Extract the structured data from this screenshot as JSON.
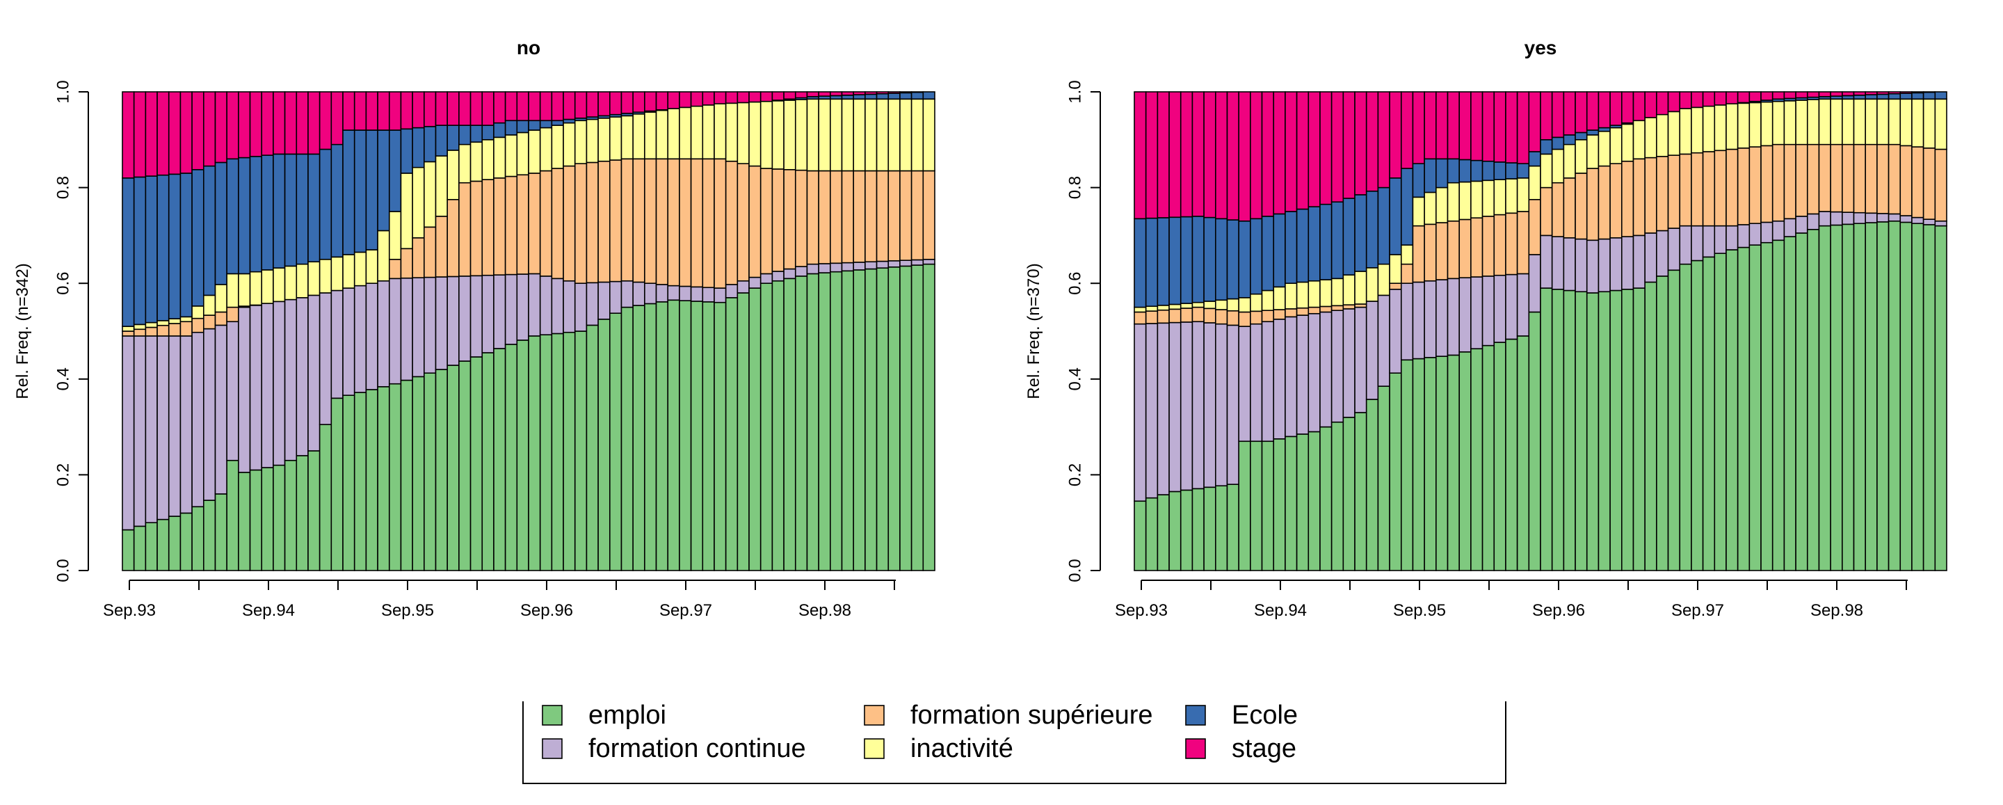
{
  "chart_data": [
    {
      "type": "bar",
      "stacked": true,
      "title": "no",
      "xlabel": "",
      "ylabel": "Rel. Freq. (n=342)",
      "ylim": [
        0,
        1
      ],
      "y_ticks": [
        "0.0",
        "0.2",
        "0.4",
        "0.6",
        "0.8",
        "1.0"
      ],
      "x_tick_labels": [
        "Sep.93",
        "Sep.94",
        "Sep.95",
        "Sep.96",
        "Sep.97",
        "Sep.98"
      ],
      "categories_count": 70,
      "series": [
        {
          "name": "emploi",
          "cumulative_top_knots": [
            [
              1,
              0.085
            ],
            [
              3,
              0.1
            ],
            [
              6,
              0.12
            ],
            [
              9,
              0.16
            ],
            [
              10,
              0.23
            ],
            [
              11,
              0.205
            ],
            [
              14,
              0.22
            ],
            [
              17,
              0.25
            ],
            [
              19,
              0.36
            ],
            [
              24,
              0.39
            ],
            [
              28,
              0.42
            ],
            [
              36,
              0.49
            ],
            [
              40,
              0.5
            ],
            [
              44,
              0.55
            ],
            [
              48,
              0.565
            ],
            [
              52,
              0.56
            ],
            [
              56,
              0.6
            ],
            [
              60,
              0.62
            ],
            [
              70,
              0.64
            ]
          ]
        },
        {
          "name": "formation continue",
          "cumulative_top_knots": [
            [
              1,
              0.49
            ],
            [
              6,
              0.49
            ],
            [
              10,
              0.52
            ],
            [
              11,
              0.55
            ],
            [
              16,
              0.57
            ],
            [
              22,
              0.6
            ],
            [
              24,
              0.61
            ],
            [
              30,
              0.615
            ],
            [
              36,
              0.62
            ],
            [
              40,
              0.6
            ],
            [
              44,
              0.605
            ],
            [
              48,
              0.595
            ],
            [
              52,
              0.59
            ],
            [
              56,
              0.62
            ],
            [
              60,
              0.64
            ],
            [
              70,
              0.65
            ]
          ]
        },
        {
          "name": "formation supérieure",
          "cumulative_top_knots": [
            [
              1,
              0.5
            ],
            [
              6,
              0.52
            ],
            [
              9,
              0.54
            ],
            [
              10,
              0.55
            ],
            [
              23,
              0.58
            ],
            [
              24,
              0.65
            ],
            [
              28,
              0.74
            ],
            [
              30,
              0.81
            ],
            [
              36,
              0.83
            ],
            [
              40,
              0.85
            ],
            [
              44,
              0.86
            ],
            [
              48,
              0.86
            ],
            [
              52,
              0.86
            ],
            [
              56,
              0.84
            ],
            [
              60,
              0.835
            ],
            [
              70,
              0.835
            ]
          ]
        },
        {
          "name": "inactivité",
          "cumulative_top_knots": [
            [
              1,
              0.51
            ],
            [
              6,
              0.53
            ],
            [
              10,
              0.62
            ],
            [
              11,
              0.62
            ],
            [
              16,
              0.64
            ],
            [
              22,
              0.67
            ],
            [
              24,
              0.75
            ],
            [
              25,
              0.83
            ],
            [
              30,
              0.89
            ],
            [
              36,
              0.92
            ],
            [
              40,
              0.94
            ],
            [
              44,
              0.95
            ],
            [
              48,
              0.965
            ],
            [
              52,
              0.975
            ],
            [
              56,
              0.98
            ],
            [
              60,
              0.985
            ],
            [
              70,
              0.985
            ]
          ]
        },
        {
          "name": "Ecole",
          "cumulative_top_knots": [
            [
              1,
              0.82
            ],
            [
              6,
              0.83
            ],
            [
              10,
              0.86
            ],
            [
              14,
              0.87
            ],
            [
              17,
              0.87
            ],
            [
              19,
              0.89
            ],
            [
              20,
              0.92
            ],
            [
              24,
              0.92
            ],
            [
              28,
              0.93
            ],
            [
              32,
              0.93
            ],
            [
              34,
              0.94
            ],
            [
              38,
              0.94
            ],
            [
              42,
              0.95
            ],
            [
              44,
              0.955
            ],
            [
              48,
              0.965
            ],
            [
              52,
              0.975
            ],
            [
              56,
              0.98
            ],
            [
              60,
              0.99
            ],
            [
              70,
              1.0
            ]
          ]
        },
        {
          "name": "stage",
          "cumulative_top_knots": [
            [
              1,
              1.0
            ],
            [
              70,
              1.0
            ]
          ]
        }
      ]
    },
    {
      "type": "bar",
      "stacked": true,
      "title": "yes",
      "xlabel": "",
      "ylabel": "Rel. Freq. (n=370)",
      "ylim": [
        0,
        1
      ],
      "y_ticks": [
        "0.0",
        "0.2",
        "0.4",
        "0.6",
        "0.8",
        "1.0"
      ],
      "x_tick_labels": [
        "Sep.93",
        "Sep.94",
        "Sep.95",
        "Sep.96",
        "Sep.97",
        "Sep.98"
      ],
      "categories_count": 70,
      "series": [
        {
          "name": "emploi",
          "cumulative_top_knots": [
            [
              1,
              0.145
            ],
            [
              4,
              0.165
            ],
            [
              9,
              0.18
            ],
            [
              10,
              0.27
            ],
            [
              12,
              0.27
            ],
            [
              16,
              0.29
            ],
            [
              20,
              0.33
            ],
            [
              24,
              0.44
            ],
            [
              28,
              0.45
            ],
            [
              34,
              0.49
            ],
            [
              36,
              0.59
            ],
            [
              40,
              0.58
            ],
            [
              44,
              0.59
            ],
            [
              48,
              0.64
            ],
            [
              52,
              0.67
            ],
            [
              56,
              0.69
            ],
            [
              60,
              0.72
            ],
            [
              66,
              0.73
            ],
            [
              70,
              0.72
            ]
          ]
        },
        {
          "name": "formation continue",
          "cumulative_top_knots": [
            [
              1,
              0.515
            ],
            [
              6,
              0.52
            ],
            [
              10,
              0.51
            ],
            [
              14,
              0.53
            ],
            [
              20,
              0.55
            ],
            [
              24,
              0.6
            ],
            [
              28,
              0.61
            ],
            [
              34,
              0.62
            ],
            [
              36,
              0.7
            ],
            [
              40,
              0.69
            ],
            [
              44,
              0.7
            ],
            [
              48,
              0.72
            ],
            [
              52,
              0.72
            ],
            [
              56,
              0.73
            ],
            [
              60,
              0.75
            ],
            [
              66,
              0.745
            ],
            [
              70,
              0.73
            ]
          ]
        },
        {
          "name": "formation supérieure",
          "cumulative_top_knots": [
            [
              1,
              0.54
            ],
            [
              6,
              0.55
            ],
            [
              10,
              0.54
            ],
            [
              16,
              0.55
            ],
            [
              22,
              0.56
            ],
            [
              24,
              0.64
            ],
            [
              25,
              0.72
            ],
            [
              28,
              0.73
            ],
            [
              34,
              0.75
            ],
            [
              36,
              0.8
            ],
            [
              40,
              0.84
            ],
            [
              44,
              0.86
            ],
            [
              48,
              0.87
            ],
            [
              52,
              0.88
            ],
            [
              56,
              0.89
            ],
            [
              60,
              0.89
            ],
            [
              66,
              0.89
            ],
            [
              70,
              0.88
            ]
          ]
        },
        {
          "name": "inactivité",
          "cumulative_top_knots": [
            [
              1,
              0.55
            ],
            [
              6,
              0.56
            ],
            [
              10,
              0.57
            ],
            [
              14,
              0.6
            ],
            [
              18,
              0.61
            ],
            [
              22,
              0.64
            ],
            [
              24,
              0.68
            ],
            [
              25,
              0.78
            ],
            [
              28,
              0.81
            ],
            [
              34,
              0.82
            ],
            [
              36,
              0.87
            ],
            [
              40,
              0.91
            ],
            [
              44,
              0.94
            ],
            [
              48,
              0.965
            ],
            [
              52,
              0.975
            ],
            [
              56,
              0.98
            ],
            [
              60,
              0.985
            ],
            [
              70,
              0.985
            ]
          ]
        },
        {
          "name": "Ecole",
          "cumulative_top_knots": [
            [
              1,
              0.735
            ],
            [
              6,
              0.74
            ],
            [
              10,
              0.73
            ],
            [
              14,
              0.75
            ],
            [
              18,
              0.77
            ],
            [
              22,
              0.8
            ],
            [
              24,
              0.84
            ],
            [
              26,
              0.86
            ],
            [
              28,
              0.86
            ],
            [
              34,
              0.85
            ],
            [
              36,
              0.9
            ],
            [
              40,
              0.92
            ],
            [
              44,
              0.94
            ],
            [
              48,
              0.96
            ],
            [
              52,
              0.975
            ],
            [
              56,
              0.985
            ],
            [
              60,
              0.99
            ],
            [
              70,
              1.0
            ]
          ]
        },
        {
          "name": "stage",
          "cumulative_top_knots": [
            [
              1,
              1.0
            ],
            [
              70,
              1.0
            ]
          ]
        }
      ]
    }
  ],
  "legend": {
    "placement": "bottom",
    "items": [
      {
        "label": "emploi",
        "color": "#7fc97f"
      },
      {
        "label": "formation continue",
        "color": "#beaed4"
      },
      {
        "label": "formation supérieure",
        "color": "#fdc086"
      },
      {
        "label": "inactivité",
        "color": "#ffff99"
      },
      {
        "label": "Ecole",
        "color": "#386cb0"
      },
      {
        "label": "stage",
        "color": "#f0027f"
      }
    ]
  }
}
